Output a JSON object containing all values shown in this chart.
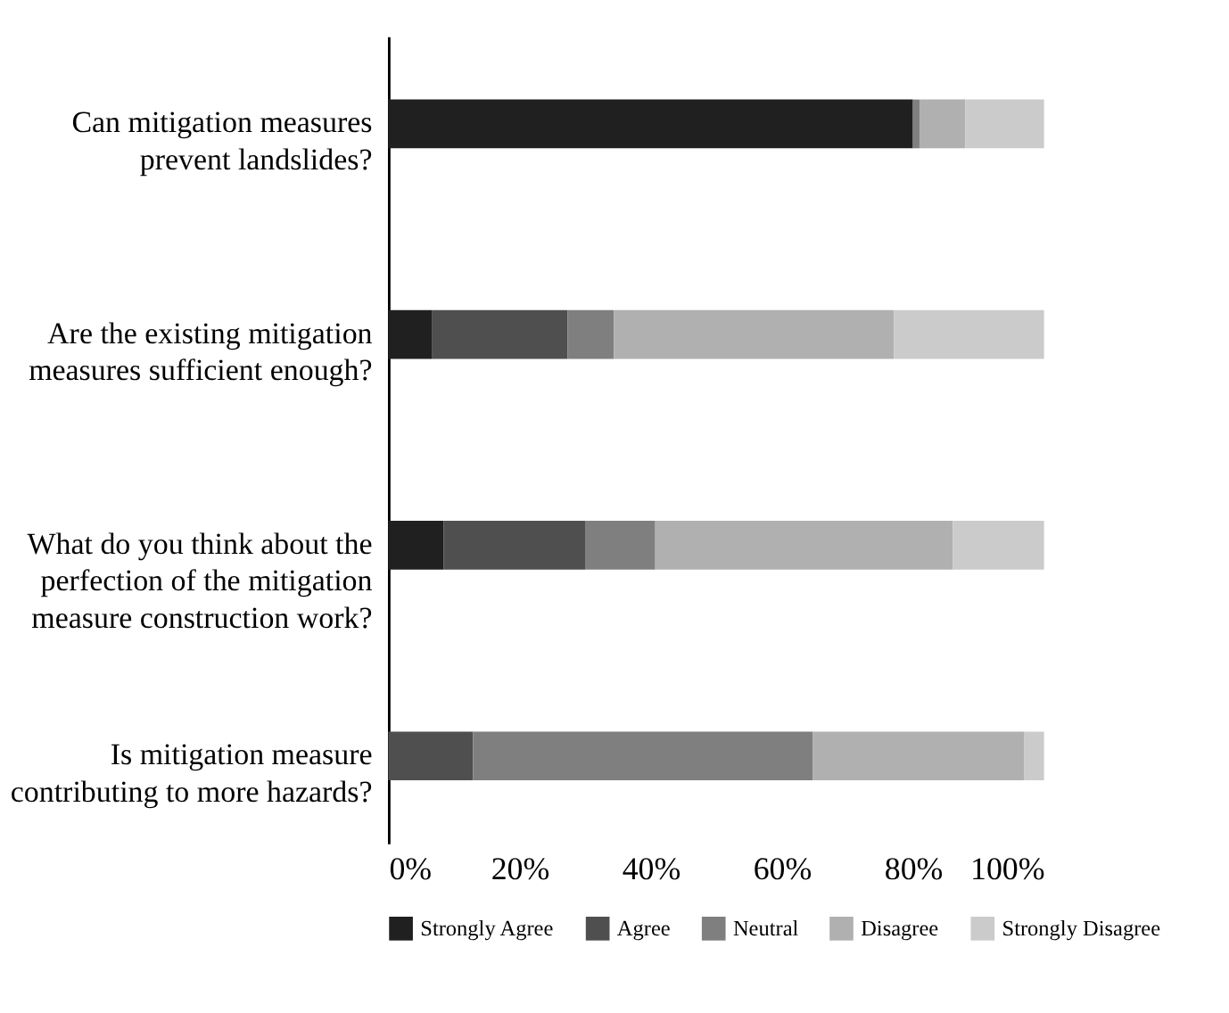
{
  "chart_data": {
    "type": "bar",
    "orientation": "horizontal",
    "stacked": true,
    "categories": [
      "Can mitigation measures prevent landslides?",
      "Are the existing mitigation measures sufficient enough?",
      "What do you think about the perfection of the mitigation measure construction work?",
      "Is mitigation measure contributing to more hazards?"
    ],
    "series": [
      {
        "name": "Strongly Agree",
        "color": "#202020",
        "values": [
          80,
          6.7,
          8.4,
          0
        ]
      },
      {
        "name": "Agree",
        "color": "#4f4f4f",
        "values": [
          0,
          20.6,
          21.6,
          12.9
        ]
      },
      {
        "name": "Neutral",
        "color": "#7f7f7f",
        "values": [
          1,
          7.1,
          10.7,
          51.8
        ]
      },
      {
        "name": "Disagree",
        "color": "#b0b0b0",
        "values": [
          7,
          42.7,
          45.4,
          32.3
        ]
      },
      {
        "name": "Strongly Disagree",
        "color": "#cbcbcb",
        "values": [
          12,
          22.9,
          13.9,
          3.0
        ]
      }
    ],
    "xlim": [
      0,
      100
    ],
    "xticks": [
      {
        "value": 0,
        "label": "0%"
      },
      {
        "value": 20,
        "label": "20%"
      },
      {
        "value": 40,
        "label": "40%"
      },
      {
        "value": 60,
        "label": "60%"
      },
      {
        "value": 80,
        "label": "80%"
      },
      {
        "value": 100,
        "label": "100%"
      }
    ],
    "grid": false,
    "legend": "bottom"
  }
}
